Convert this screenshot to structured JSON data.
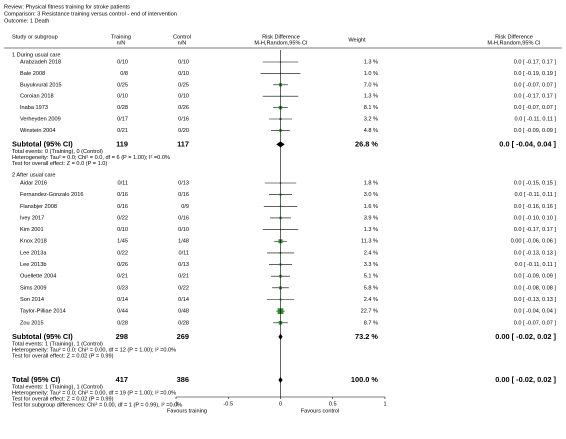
{
  "chart_data": {
    "type": "forest",
    "review": "Review:   Physical fitness training for stroke patients",
    "comparison": "Comparison:   3 Resistance training versus control - end of intervention",
    "outcome": "Outcome:   1 Death",
    "header": {
      "study": "Study or subgroup",
      "training": "Training",
      "training_unit": "n/N",
      "control": "Control",
      "control_unit": "n/N",
      "effect": "Risk Difference",
      "effect_method": "M-H,Random,95% CI",
      "weight": "Weight",
      "rd": "Risk Difference",
      "rd_method": "M-H,Random,95% CI"
    },
    "color": "#2e8b2e",
    "groups": [
      {
        "label": "1 During usual care",
        "studies": [
          {
            "study": "Arabzadeh 2018",
            "training": "0/10",
            "control": "0/10",
            "weight": 1.3,
            "weight_label": "1.3 %",
            "rd": 0,
            "ci": [
              -0.17,
              0.17
            ],
            "rd_label": "0.0 [ -0.17, 0.17 ]"
          },
          {
            "study": "Bale 2008",
            "training": "0/8",
            "control": "0/10",
            "weight": 1.0,
            "weight_label": "1.0 %",
            "rd": 0,
            "ci": [
              -0.19,
              0.19
            ],
            "rd_label": "0.0 [ -0.19, 0.19 ]"
          },
          {
            "study": "Buyukvural 2015",
            "training": "0/25",
            "control": "0/25",
            "weight": 7.0,
            "weight_label": "7.0 %",
            "rd": 0,
            "ci": [
              -0.07,
              0.07
            ],
            "rd_label": "0.0 [ -0.07, 0.07 ]"
          },
          {
            "study": "Coroian 2018",
            "training": "0/10",
            "control": "0/10",
            "weight": 1.3,
            "weight_label": "1.3 %",
            "rd": 0,
            "ci": [
              -0.17,
              0.17
            ],
            "rd_label": "0.0 [ -0.17, 0.17 ]"
          },
          {
            "study": "Inaba 1973",
            "training": "0/28",
            "control": "0/26",
            "weight": 8.1,
            "weight_label": "8.1 %",
            "rd": 0,
            "ci": [
              -0.07,
              0.07
            ],
            "rd_label": "0.0 [ -0.07, 0.07 ]"
          },
          {
            "study": "Verheyden 2009",
            "training": "0/17",
            "control": "0/16",
            "weight": 3.2,
            "weight_label": "3.2 %",
            "rd": 0,
            "ci": [
              -0.11,
              0.11
            ],
            "rd_label": "0.0 [ -0.11, 0.11 ]"
          },
          {
            "study": "Winstein 2004",
            "training": "0/21",
            "control": "0/20",
            "weight": 4.8,
            "weight_label": "4.8 %",
            "rd": 0,
            "ci": [
              -0.09,
              0.09
            ],
            "rd_label": "0.0 [ -0.09, 0.09 ]"
          }
        ],
        "subtotal": {
          "study": "Subtotal (95% CI)",
          "training": 119,
          "control": 117,
          "weight": 26.8,
          "weight_label": "26.8 %",
          "rd": 0,
          "ci": [
            -0.04,
            0.04
          ],
          "rd_label": "0.0 [ -0.04, 0.04 ]"
        },
        "notes": [
          "Total events: 0 (Training), 0 (Control)",
          "Heterogeneity: Tau² = 0.0; Chi² = 0.0, df = 6 (P = 1.00); I² =0.0%",
          "Test for overall effect: Z = 0.0 (P = 1.0)"
        ]
      },
      {
        "label": "2 After usual care",
        "studies": [
          {
            "study": "Aidar 2016",
            "training": "0/11",
            "control": "0/13",
            "weight": 1.8,
            "weight_label": "1.8 %",
            "rd": 0,
            "ci": [
              -0.15,
              0.15
            ],
            "rd_label": "0.0 [ -0.15, 0.15 ]"
          },
          {
            "study": "Fernandez-Gonzalo 2016",
            "training": "0/16",
            "control": "0/16",
            "weight": 3.0,
            "weight_label": "3.0 %",
            "rd": 0,
            "ci": [
              -0.11,
              0.11
            ],
            "rd_label": "0.0 [ -0.11, 0.11 ]"
          },
          {
            "study": "Flansbjer 2008",
            "training": "0/16",
            "control": "0/9",
            "weight": 1.6,
            "weight_label": "1.6 %",
            "rd": 0,
            "ci": [
              -0.16,
              0.16
            ],
            "rd_label": "0.0 [ -0.16, 0.16 ]"
          },
          {
            "study": "Ivey 2017",
            "training": "0/22",
            "control": "0/16",
            "weight": 3.9,
            "weight_label": "3.9 %",
            "rd": 0,
            "ci": [
              -0.1,
              0.1
            ],
            "rd_label": "0.0 [ -0.10, 0.10 ]"
          },
          {
            "study": "Kim 2001",
            "training": "0/10",
            "control": "0/10",
            "weight": 1.3,
            "weight_label": "1.3 %",
            "rd": 0,
            "ci": [
              -0.17,
              0.17
            ],
            "rd_label": "0.0 [ -0.17, 0.17 ]"
          },
          {
            "study": "Knox 2018",
            "training": "1/45",
            "control": "1/48",
            "weight": 11.3,
            "weight_label": "11.3 %",
            "rd": 0,
            "ci": [
              -0.06,
              0.06
            ],
            "rd_label": "0.00 [ -0.06, 0.06 ]"
          },
          {
            "study": "Lee 2013a",
            "training": "0/22",
            "control": "0/11",
            "weight": 2.4,
            "weight_label": "2.4 %",
            "rd": 0,
            "ci": [
              -0.13,
              0.13
            ],
            "rd_label": "0.0 [ -0.13, 0.13 ]"
          },
          {
            "study": "Lee 2013b",
            "training": "0/26",
            "control": "0/13",
            "weight": 3.3,
            "weight_label": "3.3 %",
            "rd": 0,
            "ci": [
              -0.11,
              0.11
            ],
            "rd_label": "0.0 [ -0.11, 0.11 ]"
          },
          {
            "study": "Ouellette 2004",
            "training": "0/21",
            "control": "0/21",
            "weight": 5.1,
            "weight_label": "5.1 %",
            "rd": 0,
            "ci": [
              -0.09,
              0.09
            ],
            "rd_label": "0.0 [ -0.09, 0.09 ]"
          },
          {
            "study": "Sims 2009",
            "training": "0/23",
            "control": "0/22",
            "weight": 5.8,
            "weight_label": "5.8 %",
            "rd": 0,
            "ci": [
              -0.08,
              0.08
            ],
            "rd_label": "0.0 [ -0.08, 0.08 ]"
          },
          {
            "study": "Son 2014",
            "training": "0/14",
            "control": "0/14",
            "weight": 2.4,
            "weight_label": "2.4 %",
            "rd": 0,
            "ci": [
              -0.13,
              0.13
            ],
            "rd_label": "0.0 [ -0.13, 0.13 ]"
          },
          {
            "study": "Taylor-Pilliae 2014",
            "training": "0/44",
            "control": "0/48",
            "weight": 22.7,
            "weight_label": "22.7 %",
            "rd": 0,
            "ci": [
              -0.04,
              0.04
            ],
            "rd_label": "0.0 [ -0.04, 0.04 ]"
          },
          {
            "study": "Zou 2015",
            "training": "0/28",
            "control": "0/28",
            "weight": 8.7,
            "weight_label": "8.7 %",
            "rd": 0,
            "ci": [
              -0.07,
              0.07
            ],
            "rd_label": "0.0 [ -0.07, 0.07 ]"
          }
        ],
        "subtotal": {
          "study": "Subtotal (95% CI)",
          "training": 298,
          "control": 269,
          "weight": 73.2,
          "weight_label": "73.2 %",
          "rd": 0,
          "ci": [
            -0.02,
            0.02
          ],
          "rd_label": "0.00 [ -0.02, 0.02 ]"
        },
        "notes": [
          "Total events: 1 (Training), 1 (Control)",
          "Heterogeneity: Tau² = 0.0; Chi² = 0.00, df = 12 (P = 1.00); I² =0.0%",
          "Test for overall effect: Z = 0.02 (P = 0.99)"
        ]
      }
    ],
    "total": {
      "study": "Total (95% CI)",
      "training": 417,
      "control": 386,
      "weight": 100.0,
      "weight_label": "100.0 %",
      "rd": 0,
      "ci": [
        -0.02,
        0.02
      ],
      "rd_label": "0.00 [ -0.02, 0.02 ]"
    },
    "total_notes": [
      "Total events: 1 (Training), 1 (Control)",
      "Heterogeneity: Tau² = 0.0; Chi² = 0.00, df = 19 (P = 1.00); I² =0.0%",
      "Test for overall effect: Z = 0.02 (P = 0.99)",
      "Test for subgroup differences: Chi² = 0.00, df = 1 (P = 0.99), I² =0.0%"
    ],
    "xlim": [
      -1,
      1
    ],
    "xticks": [
      -1,
      -0.5,
      0,
      0.5,
      1
    ],
    "favours_left": "Favours training",
    "favours_right": "Favours control"
  }
}
